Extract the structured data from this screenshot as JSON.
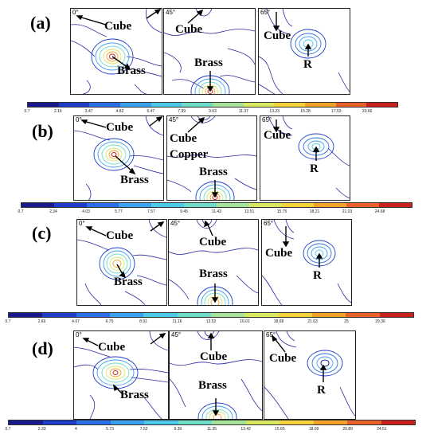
{
  "rows": [
    {
      "label": "(a)",
      "panels": [
        {
          "angle": "0°",
          "labels": [
            "Cube",
            "Brass"
          ]
        },
        {
          "angle": "45°",
          "labels": [
            "Cube",
            "Brass"
          ]
        },
        {
          "angle": "65°",
          "labels": [
            "Cube",
            "R"
          ]
        }
      ],
      "scale_ticks": [
        "0.7",
        "2.16",
        "3.47",
        "4.82",
        "6.47",
        "7.99",
        "9.63",
        "11.37",
        "13.23",
        "15.28",
        "17.53",
        "20.66"
      ]
    },
    {
      "label": "(b)",
      "panels": [
        {
          "angle": "0°",
          "labels": [
            "Cube",
            "Brass"
          ]
        },
        {
          "angle": "45°",
          "labels": [
            "Cube",
            "Copper",
            "Brass"
          ]
        },
        {
          "angle": "65°",
          "labels": [
            "Cube",
            "R"
          ]
        }
      ],
      "scale_ticks": [
        "0.7",
        "2.34",
        "4.03",
        "5.77",
        "7.57",
        "9.45",
        "11.43",
        "13.51",
        "15.75",
        "18.21",
        "21.03",
        "24.68"
      ]
    },
    {
      "label": "(c)",
      "panels": [
        {
          "angle": "0°",
          "labels": [
            "Cube",
            "Brass"
          ]
        },
        {
          "angle": "45°",
          "labels": [
            "Cube",
            "Brass"
          ]
        },
        {
          "angle": "65°",
          "labels": [
            "Cube",
            "R"
          ]
        }
      ],
      "scale_ticks": [
        "0.7",
        "2.66",
        "4.67",
        "6.75",
        "8.91",
        "11.16",
        "13.52",
        "16.01",
        "18.68",
        "21.63",
        "25",
        "29.36"
      ]
    },
    {
      "label": "(d)",
      "panels": [
        {
          "angle": "0°",
          "labels": [
            "Cube",
            "Brass"
          ]
        },
        {
          "angle": "45°",
          "labels": [
            "Cube",
            "Brass"
          ]
        },
        {
          "angle": "65°",
          "labels": [
            "Cube",
            "R"
          ]
        }
      ],
      "scale_ticks": [
        "0.7",
        "2.33",
        "4",
        "5.73",
        "7.52",
        "9.39",
        "11.35",
        "13.42",
        "15.65",
        "18.09",
        "20.89",
        "24.51"
      ]
    }
  ],
  "colormap": [
    "#1a1a8c",
    "#1f3dc8",
    "#2a6fe8",
    "#3aa0f0",
    "#4cc8e8",
    "#6fdcc8",
    "#a6e39a",
    "#d8e860",
    "#f3d23a",
    "#f3a22a",
    "#e8602a",
    "#c8201e"
  ]
}
